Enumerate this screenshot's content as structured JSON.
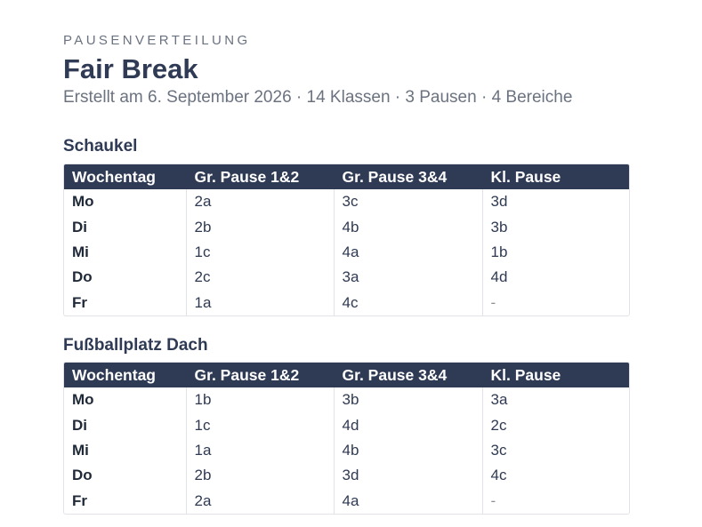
{
  "header": {
    "eyebrow": "PAUSENVERTEILUNG",
    "title": "Fair Break",
    "subtitle": "Erstellt am 6. September 2026 · 14 Klassen · 3 Pausen · 4 Bereiche"
  },
  "columns": [
    "Wochentag",
    "Gr. Pause 1&2",
    "Gr. Pause 3&4",
    "Kl. Pause"
  ],
  "sections": [
    {
      "title": "Schaukel",
      "rows": [
        [
          "Mo",
          "2a",
          "3c",
          "3d"
        ],
        [
          "Di",
          "2b",
          "4b",
          "3b"
        ],
        [
          "Mi",
          "1c",
          "4a",
          "1b"
        ],
        [
          "Do",
          "2c",
          "3a",
          "4d"
        ],
        [
          "Fr",
          "1a",
          "4c",
          "-"
        ]
      ]
    },
    {
      "title": "Fußballplatz Dach",
      "rows": [
        [
          "Mo",
          "1b",
          "3b",
          "3a"
        ],
        [
          "Di",
          "1c",
          "4d",
          "2c"
        ],
        [
          "Mi",
          "1a",
          "4b",
          "3c"
        ],
        [
          "Do",
          "2b",
          "3d",
          "4c"
        ],
        [
          "Fr",
          "2a",
          "4a",
          "-"
        ]
      ]
    }
  ]
}
